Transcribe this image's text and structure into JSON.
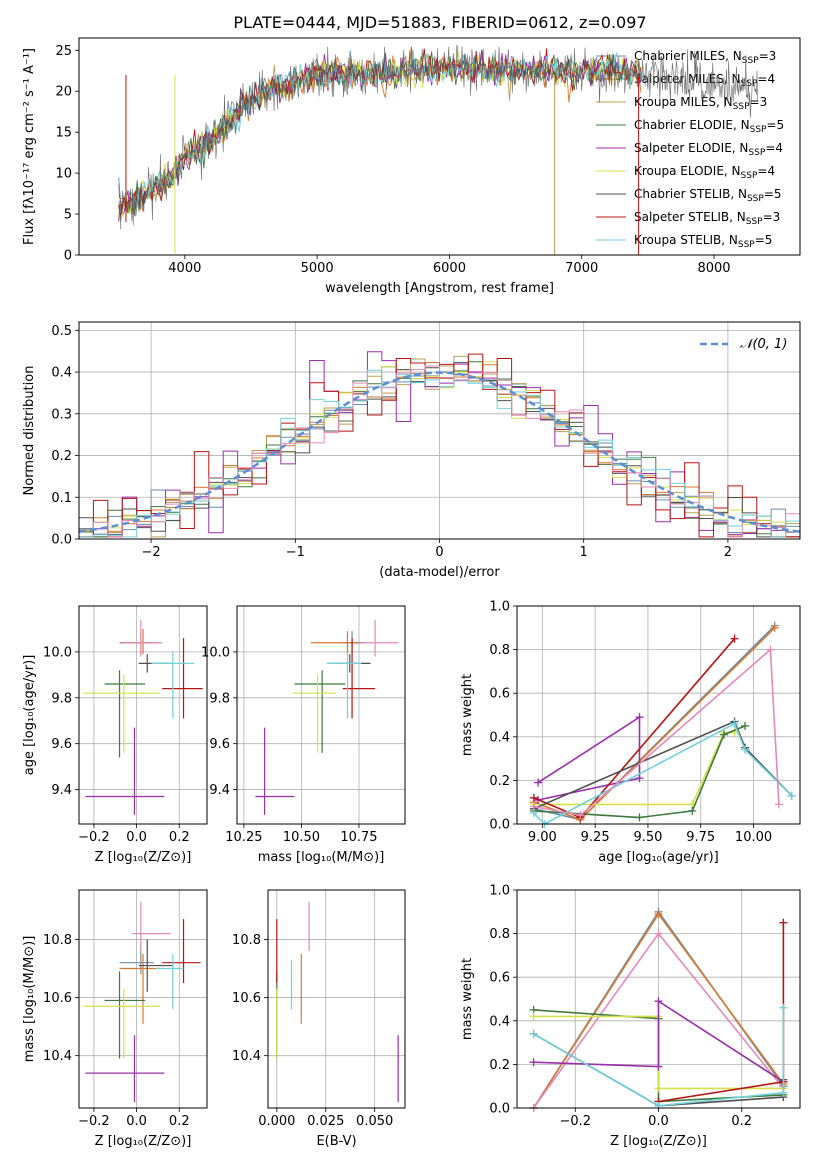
{
  "colors": {
    "chabrier_miles": "#6a8fb0",
    "salpeter_miles": "#d9792e",
    "kroupa_miles": "#b8a05a",
    "chabrier_elodie": "#3e7a3e",
    "salpeter_elodie": "#9a2faa",
    "kroupa_elodie": "#d6e04a",
    "chabrier_stelib": "#505050",
    "salpeter_stelib": "#b81414",
    "kroupa_stelib": "#6fd2dc",
    "pink": "#e58ab8",
    "normal_curve": "#5b8fd6"
  },
  "chart_data": [
    {
      "id": "spectrum",
      "type": "line",
      "title": "PLATE=0444, MJD=51883, FIBERID=0612, z=0.097",
      "xlabel": "wavelength [Angstrom, rest frame]",
      "ylabel": "Flux [fλ10⁻¹⁷ erg cm⁻² s⁻¹ A⁻¹]",
      "xlim": [
        3200,
        8650
      ],
      "ylim": [
        0,
        26.5
      ],
      "xticks": [
        4000,
        5000,
        6000,
        7000,
        8000
      ],
      "yticks": [
        0,
        5,
        10,
        15,
        20,
        25
      ],
      "grid": false,
      "legend_position": "top-right",
      "continuum": [
        [
          3500,
          6.0
        ],
        [
          3700,
          7.5
        ],
        [
          3900,
          9.5
        ],
        [
          4000,
          12.0
        ],
        [
          4200,
          14.0
        ],
        [
          4400,
          17.5
        ],
        [
          4600,
          20.0
        ],
        [
          4800,
          21.0
        ],
        [
          5000,
          22.0
        ],
        [
          5300,
          22.0
        ],
        [
          5600,
          22.5
        ],
        [
          6000,
          23.0
        ],
        [
          6400,
          22.5
        ],
        [
          6800,
          22.5
        ],
        [
          7200,
          22.5
        ],
        [
          7600,
          22.0
        ],
        [
          8000,
          21.0
        ],
        [
          8300,
          20.5
        ]
      ],
      "series": [
        {
          "name": "Chabrier MILES, N_SSP=3",
          "color_key": "chabrier_miles"
        },
        {
          "name": "Salpeter MILES, N_SSP=4",
          "color_key": "salpeter_miles"
        },
        {
          "name": "Kroupa MILES, N_SSP=3",
          "color_key": "kroupa_miles"
        },
        {
          "name": "Chabrier ELODIE, N_SSP=5",
          "color_key": "chabrier_elodie"
        },
        {
          "name": "Salpeter ELODIE, N_SSP=4",
          "color_key": "salpeter_elodie"
        },
        {
          "name": "Kroupa ELODIE, N_SSP=4",
          "color_key": "kroupa_elodie"
        },
        {
          "name": "Chabrier STELIB, N_SSP=5",
          "color_key": "chabrier_stelib"
        },
        {
          "name": "Salpeter STELIB, N_SSP=3",
          "color_key": "salpeter_stelib"
        },
        {
          "name": "Kroupa STELIB, N_SSP=5",
          "color_key": "kroupa_stelib"
        }
      ]
    },
    {
      "id": "residuals",
      "type": "bar",
      "xlabel": "(data-model)/error",
      "ylabel": "Normed distribution",
      "xlim": [
        -2.5,
        2.5
      ],
      "ylim": [
        0,
        0.52
      ],
      "xticks": [
        -2,
        -1,
        0,
        1,
        2
      ],
      "yticks": [
        0.0,
        0.1,
        0.2,
        0.3,
        0.4,
        0.5
      ],
      "grid": true,
      "legend_position": "top-right",
      "legend_label": "𝒩(0, 1)",
      "bin_width": 0.1,
      "bin_start": -2.5
    },
    {
      "id": "age_vs_Z",
      "type": "scatter",
      "xlabel": "Z [log₁₀(Z/Z⊙)]",
      "ylabel": "age  [log₁₀(age/yr)]",
      "xlim": [
        -0.27,
        0.33
      ],
      "ylim": [
        9.25,
        10.2
      ],
      "xticks": [
        -0.2,
        0.0,
        0.2
      ],
      "yticks": [
        9.4,
        9.6,
        9.8,
        10.0
      ],
      "grid": true,
      "points": [
        {
          "color_key": "chabrier_miles",
          "x": 0.02,
          "xerr": [
            0.1,
            0.05
          ],
          "y": 10.04,
          "yerr": [
            0.05,
            0.05
          ]
        },
        {
          "color_key": "salpeter_miles",
          "x": 0.03,
          "xerr": [
            0.1,
            0.07
          ],
          "y": 10.04,
          "yerr": [
            0.05,
            0.06
          ]
        },
        {
          "color_key": "chabrier_elodie",
          "x": -0.08,
          "xerr": [
            0.07,
            0.12
          ],
          "y": 9.86,
          "yerr": [
            0.32,
            0.06
          ]
        },
        {
          "color_key": "salpeter_elodie",
          "x": -0.01,
          "xerr": [
            0.23,
            0.14
          ],
          "y": 9.37,
          "yerr": [
            0.08,
            0.3
          ]
        },
        {
          "color_key": "kroupa_elodie",
          "x": -0.06,
          "xerr": [
            0.19,
            0.17
          ],
          "y": 9.82,
          "yerr": [
            0.26,
            0.08
          ]
        },
        {
          "color_key": "chabrier_stelib",
          "x": 0.05,
          "xerr": [
            0.04,
            0.12
          ],
          "y": 9.95,
          "yerr": [
            0.04,
            0.04
          ]
        },
        {
          "color_key": "salpeter_stelib",
          "x": 0.22,
          "xerr": [
            0.1,
            0.09
          ],
          "y": 9.84,
          "yerr": [
            0.13,
            0.22
          ]
        },
        {
          "color_key": "kroupa_stelib",
          "x": 0.17,
          "xerr": [
            0.1,
            0.1
          ],
          "y": 9.95,
          "yerr": [
            0.24,
            0.05
          ]
        },
        {
          "color_key": "pink",
          "x": 0.02,
          "xerr": [
            0.08,
            0.1
          ],
          "y": 10.04,
          "yerr": [
            0.06,
            0.1
          ]
        }
      ]
    },
    {
      "id": "age_vs_mass",
      "type": "scatter",
      "xlabel": "mass [log₁₀(M/M⊙)]",
      "ylabel": "",
      "xlim": [
        10.22,
        10.95
      ],
      "ylim": [
        9.25,
        10.2
      ],
      "xticks": [
        10.25,
        10.5,
        10.75
      ],
      "yticks": [
        9.4,
        9.6,
        9.8,
        10.0
      ],
      "grid": true,
      "points": [
        {
          "color_key": "chabrier_miles",
          "x": 10.72,
          "xerr": [
            0.04,
            0.06
          ],
          "y": 10.04,
          "yerr": [
            0.05,
            0.05
          ]
        },
        {
          "color_key": "salpeter_miles",
          "x": 10.7,
          "xerr": [
            0.16,
            0.05
          ],
          "y": 10.04,
          "yerr": [
            0.05,
            0.05
          ]
        },
        {
          "color_key": "chabrier_elodie",
          "x": 10.59,
          "xerr": [
            0.12,
            0.1
          ],
          "y": 9.86,
          "yerr": [
            0.3,
            0.06
          ]
        },
        {
          "color_key": "salpeter_elodie",
          "x": 10.34,
          "xerr": [
            0.04,
            0.13
          ],
          "y": 9.37,
          "yerr": [
            0.08,
            0.3
          ]
        },
        {
          "color_key": "kroupa_elodie",
          "x": 10.57,
          "xerr": [
            0.11,
            0.08
          ],
          "y": 9.82,
          "yerr": [
            0.26,
            0.08
          ]
        },
        {
          "color_key": "chabrier_stelib",
          "x": 10.71,
          "xerr": [
            0.09,
            0.09
          ],
          "y": 9.95,
          "yerr": [
            0.04,
            0.04
          ]
        },
        {
          "color_key": "salpeter_stelib",
          "x": 10.72,
          "xerr": [
            0.04,
            0.1
          ],
          "y": 9.84,
          "yerr": [
            0.13,
            0.22
          ]
        },
        {
          "color_key": "kroupa_stelib",
          "x": 10.7,
          "xerr": [
            0.09,
            0.06
          ],
          "y": 9.95,
          "yerr": [
            0.24,
            0.05
          ]
        },
        {
          "color_key": "pink",
          "x": 10.82,
          "xerr": [
            0.06,
            0.1
          ],
          "y": 10.04,
          "yerr": [
            0.06,
            0.1
          ]
        }
      ]
    },
    {
      "id": "weight_vs_age",
      "type": "line",
      "xlabel": "age  [log₁₀(age/yr)]",
      "ylabel": "mass weight",
      "xlim": [
        8.88,
        10.22
      ],
      "ylim": [
        0.0,
        1.0
      ],
      "xticks": [
        9.0,
        9.25,
        9.5,
        9.75,
        10.0
      ],
      "yticks": [
        0.0,
        0.2,
        0.4,
        0.6,
        0.8,
        1.0
      ],
      "grid": true,
      "series": [
        {
          "color_key": "chabrier_miles",
          "x": [
            8.96,
            9.18,
            10.1
          ],
          "y": [
            0.07,
            0.02,
            0.91
          ]
        },
        {
          "color_key": "salpeter_miles",
          "x": [
            8.96,
            9.18,
            10.1
          ],
          "y": [
            0.1,
            0.02,
            0.9
          ]
        },
        {
          "color_key": "kroupa_elodie",
          "x": [
            8.96,
            9.71,
            9.86,
            9.91
          ],
          "y": [
            0.09,
            0.09,
            0.42,
            0.42
          ]
        },
        {
          "color_key": "chabrier_elodie",
          "x": [
            8.96,
            9.46,
            9.71,
            9.86,
            9.96
          ],
          "y": [
            0.06,
            0.03,
            0.06,
            0.41,
            0.45
          ]
        },
        {
          "color_key": "salpeter_elodie",
          "x": [
            8.98,
            9.46,
            9.46,
            8.98
          ],
          "y": [
            0.19,
            0.49,
            0.21,
            0.11
          ]
        },
        {
          "color_key": "salpeter_stelib",
          "x": [
            8.96,
            9.18,
            9.91
          ],
          "y": [
            0.12,
            0.03,
            0.85
          ]
        },
        {
          "color_key": "chabrier_stelib",
          "x": [
            8.96,
            9.91,
            9.96,
            10.18
          ],
          "y": [
            0.07,
            0.47,
            0.35,
            0.13
          ]
        },
        {
          "color_key": "kroupa_stelib",
          "x": [
            8.96,
            9.01,
            9.91,
            9.96,
            10.18
          ],
          "y": [
            0.05,
            0.0,
            0.46,
            0.34,
            0.13
          ]
        },
        {
          "color_key": "pink",
          "x": [
            8.96,
            9.18,
            10.08,
            10.12
          ],
          "y": [
            0.08,
            0.04,
            0.8,
            0.09
          ]
        }
      ]
    },
    {
      "id": "mass_vs_Z",
      "type": "scatter",
      "xlabel": "Z [log₁₀(Z/Z⊙)]",
      "ylabel": "mass [log₁₀(M/M⊙)]",
      "xlim": [
        -0.27,
        0.33
      ],
      "ylim": [
        10.22,
        10.97
      ],
      "xticks": [
        -0.2,
        0.0,
        0.2
      ],
      "yticks": [
        10.4,
        10.6,
        10.8
      ],
      "grid": true,
      "points": [
        {
          "color_key": "chabrier_miles",
          "x": 0.02,
          "xerr": [
            0.1,
            0.06
          ],
          "y": 10.72,
          "yerr": [
            0.04,
            0.06
          ]
        },
        {
          "color_key": "salpeter_miles",
          "x": 0.03,
          "xerr": [
            0.11,
            0.08
          ],
          "y": 10.7,
          "yerr": [
            0.19,
            0.05
          ]
        },
        {
          "color_key": "chabrier_elodie",
          "x": -0.08,
          "xerr": [
            0.07,
            0.12
          ],
          "y": 10.59,
          "yerr": [
            0.2,
            0.1
          ]
        },
        {
          "color_key": "salpeter_elodie",
          "x": -0.01,
          "xerr": [
            0.23,
            0.14
          ],
          "y": 10.34,
          "yerr": [
            0.1,
            0.13
          ]
        },
        {
          "color_key": "kroupa_elodie",
          "x": -0.06,
          "xerr": [
            0.19,
            0.17
          ],
          "y": 10.57,
          "yerr": [
            0.18,
            0.06
          ]
        },
        {
          "color_key": "chabrier_stelib",
          "x": 0.05,
          "xerr": [
            0.04,
            0.12
          ],
          "y": 10.71,
          "yerr": [
            0.09,
            0.09
          ]
        },
        {
          "color_key": "salpeter_stelib",
          "x": 0.22,
          "xerr": [
            0.1,
            0.08
          ],
          "y": 10.72,
          "yerr": [
            0.07,
            0.15
          ]
        },
        {
          "color_key": "kroupa_stelib",
          "x": 0.17,
          "xerr": [
            0.08,
            0.05
          ],
          "y": 10.7,
          "yerr": [
            0.14,
            0.05
          ]
        },
        {
          "color_key": "pink",
          "x": 0.02,
          "xerr": [
            0.04,
            0.14
          ],
          "y": 10.82,
          "yerr": [
            0.06,
            0.11
          ]
        }
      ]
    },
    {
      "id": "mass_vs_ebv",
      "type": "scatter",
      "xlabel": "E(B-V)",
      "ylabel": "",
      "xlim": [
        -0.0045,
        0.0655
      ],
      "ylim": [
        10.22,
        10.97
      ],
      "xticks": [
        0.0,
        0.025,
        0.05
      ],
      "yticks": [
        10.4,
        10.6,
        10.8
      ],
      "grid": true,
      "points": [
        {
          "color_key": "chabrier_elodie",
          "x": 0.0,
          "yerr": [
            0.2,
            0.1
          ],
          "y": 10.59
        },
        {
          "color_key": "kroupa_elodie",
          "x": 0.0,
          "yerr": [
            0.18,
            0.06
          ],
          "y": 10.57
        },
        {
          "color_key": "salpeter_stelib",
          "x": 0.0,
          "yerr": [
            0.07,
            0.15
          ],
          "y": 10.72
        },
        {
          "color_key": "kroupa_stelib",
          "x": 0.0075,
          "yerr": [
            0.12,
            0.05
          ],
          "y": 10.68
        },
        {
          "color_key": "salpeter_miles",
          "x": 0.0125,
          "yerr": [
            0.19,
            0.05
          ],
          "y": 10.7
        },
        {
          "color_key": "pink",
          "x": 0.0165,
          "yerr": [
            0.06,
            0.11
          ],
          "y": 10.82
        },
        {
          "color_key": "salpeter_elodie",
          "x": 0.062,
          "yerr": [
            0.1,
            0.13
          ],
          "y": 10.34
        }
      ]
    },
    {
      "id": "weight_vs_Z",
      "type": "line",
      "xlabel": "Z [log₁₀(Z/Z⊙)]",
      "ylabel": "mass weight",
      "xlim": [
        -0.34,
        0.34
      ],
      "ylim": [
        0.0,
        1.0
      ],
      "xticks": [
        -0.2,
        0.0,
        0.2
      ],
      "yticks": [
        0.0,
        0.2,
        0.4,
        0.6,
        0.8,
        1.0
      ],
      "grid": true,
      "series": [
        {
          "color_key": "chabrier_miles",
          "x": [
            -0.3,
            0.0,
            0.3
          ],
          "y": [
            0.0,
            0.9,
            0.1
          ]
        },
        {
          "color_key": "salpeter_miles",
          "x": [
            -0.3,
            0.0,
            0.3
          ],
          "y": [
            0.0,
            0.89,
            0.11
          ]
        },
        {
          "color_key": "pink",
          "x": [
            -0.3,
            0.0,
            0.3
          ],
          "y": [
            0.0,
            0.8,
            0.09
          ]
        },
        {
          "color_key": "chabrier_elodie",
          "x": [
            -0.3,
            0.0,
            0.0,
            0.3
          ],
          "y": [
            0.45,
            0.41,
            0.03,
            0.06
          ]
        },
        {
          "color_key": "kroupa_elodie",
          "x": [
            -0.3,
            0.0,
            0.0,
            0.3
          ],
          "y": [
            0.42,
            0.42,
            0.09,
            0.09
          ]
        },
        {
          "color_key": "salpeter_elodie",
          "x": [
            -0.3,
            0.0,
            0.0,
            0.3
          ],
          "y": [
            0.21,
            0.19,
            0.49,
            0.12
          ]
        },
        {
          "color_key": "salpeter_stelib",
          "x": [
            0.0,
            0.3,
            0.3
          ],
          "y": [
            0.03,
            0.12,
            0.85
          ]
        },
        {
          "color_key": "chabrier_stelib",
          "x": [
            -0.3,
            0.0,
            0.3,
            0.3
          ],
          "y": [
            0.34,
            0.01,
            0.05,
            0.13
          ]
        },
        {
          "color_key": "kroupa_stelib",
          "x": [
            -0.3,
            0.0,
            0.3,
            0.3
          ],
          "y": [
            0.34,
            0.01,
            0.07,
            0.46
          ]
        }
      ]
    }
  ]
}
